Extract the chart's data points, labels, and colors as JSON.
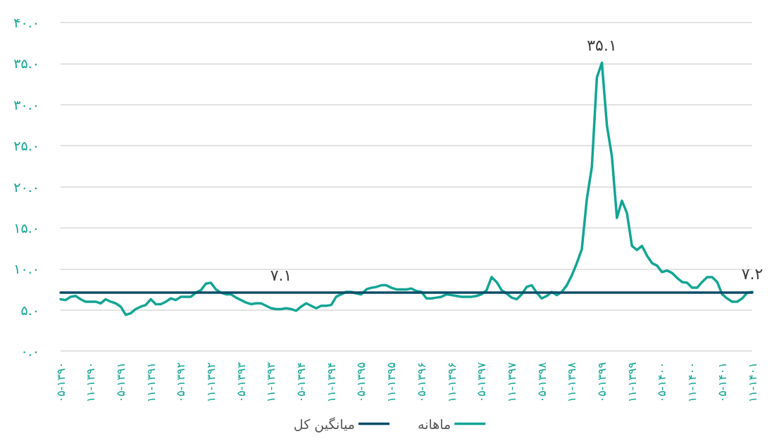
{
  "chart_data": {
    "type": "line",
    "categories": [
      "۰۵-۱۳۹۰",
      null,
      null,
      null,
      null,
      null,
      "۱۱-۱۳۹۰",
      null,
      null,
      null,
      null,
      null,
      "۰۵-۱۳۹۱",
      null,
      null,
      null,
      null,
      null,
      "۱۱-۱۳۹۱",
      null,
      null,
      null,
      null,
      null,
      "۰۵-۱۳۹۲",
      null,
      null,
      null,
      null,
      null,
      "۱۱-۱۳۹۲",
      null,
      null,
      null,
      null,
      null,
      "۰۵-۱۳۹۳",
      null,
      null,
      null,
      null,
      null,
      "۱۱-۱۳۹۳",
      null,
      null,
      null,
      null,
      null,
      "۰۵-۱۳۹۴",
      null,
      null,
      null,
      null,
      null,
      "۱۱-۱۳۹۴",
      null,
      null,
      null,
      null,
      null,
      "۰۵-۱۳۹۵",
      null,
      null,
      null,
      null,
      null,
      "۱۱-۱۳۹۵",
      null,
      null,
      null,
      null,
      null,
      "۰۵-۱۳۹۶",
      null,
      null,
      null,
      null,
      null,
      "۱۱-۱۳۹۶",
      null,
      null,
      null,
      null,
      null,
      "۰۵-۱۳۹۷",
      null,
      null,
      null,
      null,
      null,
      "۱۱-۱۳۹۷",
      null,
      null,
      null,
      null,
      null,
      "۰۵-۱۳۹۸",
      null,
      null,
      null,
      null,
      null,
      "۱۱-۱۳۹۸",
      null,
      null,
      null,
      null,
      null,
      "۰۵-۱۳۹۹",
      null,
      null,
      null,
      null,
      null,
      "۱۱-۱۳۹۹",
      null,
      null,
      null,
      null,
      null,
      "۰۵-۱۴۰۰",
      null,
      null,
      null,
      null,
      null,
      "۱۱-۱۴۰۰",
      null,
      null,
      null,
      null,
      null,
      "۰۵-۱۴۰۱",
      null,
      null,
      null,
      null,
      null,
      "۱۱-۱۴۰۱"
    ],
    "series": [
      {
        "name": "ماهانه",
        "color": "#12a594",
        "values": [
          6.3,
          6.2,
          6.6,
          6.7,
          6.3,
          6.0,
          6.0,
          6.0,
          5.8,
          6.3,
          6.0,
          5.8,
          5.4,
          4.4,
          4.6,
          5.1,
          5.4,
          5.6,
          6.3,
          5.7,
          5.7,
          6.0,
          6.4,
          6.2,
          6.6,
          6.6,
          6.6,
          7.1,
          7.4,
          8.2,
          8.3,
          7.5,
          7.1,
          6.9,
          6.9,
          6.5,
          6.2,
          5.9,
          5.7,
          5.8,
          5.8,
          5.5,
          5.2,
          5.1,
          5.1,
          5.2,
          5.1,
          4.9,
          5.4,
          5.8,
          5.5,
          5.2,
          5.5,
          5.5,
          5.6,
          6.6,
          6.9,
          7.2,
          7.2,
          7.0,
          6.9,
          7.5,
          7.7,
          7.8,
          8.0,
          8.0,
          7.7,
          7.5,
          7.5,
          7.5,
          7.6,
          7.3,
          7.2,
          6.4,
          6.4,
          6.5,
          6.6,
          6.9,
          6.8,
          6.7,
          6.6,
          6.6,
          6.6,
          6.7,
          6.9,
          7.4,
          9.0,
          8.4,
          7.4,
          7.0,
          6.5,
          6.3,
          6.9,
          7.8,
          8.0,
          7.1,
          6.4,
          6.7,
          7.2,
          6.8,
          7.2,
          8.0,
          9.2,
          10.7,
          12.4,
          18.5,
          22.4,
          33.3,
          35.1,
          27.5,
          23.7,
          16.2,
          18.3,
          16.8,
          12.8,
          12.3,
          12.8,
          11.6,
          10.7,
          10.4,
          9.6,
          9.8,
          9.5,
          8.9,
          8.4,
          8.3,
          7.7,
          7.7,
          8.4,
          9.0,
          9.0,
          8.4,
          6.9,
          6.4,
          6.0,
          6.0,
          6.4,
          7.1,
          7.2
        ],
        "value_labels": [
          null,
          null,
          null,
          null,
          null,
          null,
          null,
          null,
          null,
          null,
          null,
          null,
          null,
          null,
          null,
          null,
          null,
          null,
          null,
          null,
          null,
          null,
          null,
          null,
          null,
          null,
          null,
          null,
          null,
          null,
          null,
          null,
          null,
          null,
          null,
          null,
          null,
          null,
          null,
          null,
          null,
          null,
          null,
          null,
          null,
          null,
          null,
          null,
          null,
          null,
          null,
          null,
          null,
          null,
          null,
          null,
          null,
          null,
          null,
          null,
          null,
          null,
          null,
          null,
          null,
          null,
          null,
          null,
          null,
          null,
          null,
          null,
          null,
          null,
          null,
          null,
          null,
          null,
          null,
          null,
          null,
          null,
          null,
          null,
          null,
          null,
          null,
          null,
          null,
          null,
          null,
          null,
          null,
          null,
          null,
          null,
          null,
          null,
          null,
          null,
          null,
          null,
          null,
          null,
          null,
          null,
          null,
          null,
          "۳۵.۱",
          null,
          null,
          null,
          null,
          null,
          null,
          null,
          null,
          null,
          null,
          null,
          null,
          null,
          null,
          null,
          null,
          null,
          null,
          null,
          null,
          null,
          null,
          null,
          null,
          null,
          null,
          null,
          null,
          null,
          "۷.۲"
        ]
      },
      {
        "name": "میانگین کل",
        "color": "#0b4d68",
        "values": [
          7.1,
          7.1,
          7.1,
          7.1,
          7.1,
          7.1,
          7.1,
          7.1,
          7.1,
          7.1,
          7.1,
          7.1,
          7.1,
          7.1,
          7.1,
          7.1,
          7.1,
          7.1,
          7.1,
          7.1,
          7.1,
          7.1,
          7.1,
          7.1,
          7.1,
          7.1,
          7.1,
          7.1,
          7.1,
          7.1,
          7.1,
          7.1,
          7.1,
          7.1,
          7.1,
          7.1,
          7.1,
          7.1,
          7.1,
          7.1,
          7.1,
          7.1,
          7.1,
          7.1,
          7.1,
          7.1,
          7.1,
          7.1,
          7.1,
          7.1,
          7.1,
          7.1,
          7.1,
          7.1,
          7.1,
          7.1,
          7.1,
          7.1,
          7.1,
          7.1,
          7.1,
          7.1,
          7.1,
          7.1,
          7.1,
          7.1,
          7.1,
          7.1,
          7.1,
          7.1,
          7.1,
          7.1,
          7.1,
          7.1,
          7.1,
          7.1,
          7.1,
          7.1,
          7.1,
          7.1,
          7.1,
          7.1,
          7.1,
          7.1,
          7.1,
          7.1,
          7.1,
          7.1,
          7.1,
          7.1,
          7.1,
          7.1,
          7.1,
          7.1,
          7.1,
          7.1,
          7.1,
          7.1,
          7.1,
          7.1,
          7.1,
          7.1,
          7.1,
          7.1,
          7.1,
          7.1,
          7.1,
          7.1,
          7.1,
          7.1,
          7.1,
          7.1,
          7.1,
          7.1,
          7.1,
          7.1,
          7.1,
          7.1,
          7.1,
          7.1,
          7.1,
          7.1,
          7.1,
          7.1,
          7.1,
          7.1,
          7.1,
          7.1,
          7.1,
          7.1,
          7.1,
          7.1,
          7.1,
          7.1,
          7.1,
          7.1,
          7.1,
          7.1,
          7.1
        ],
        "value_labels": [
          null,
          null,
          null,
          null,
          null,
          null,
          null,
          null,
          null,
          null,
          null,
          null,
          null,
          null,
          null,
          null,
          null,
          null,
          null,
          null,
          null,
          null,
          null,
          null,
          null,
          null,
          null,
          null,
          null,
          null,
          null,
          null,
          null,
          null,
          null,
          null,
          null,
          null,
          null,
          null,
          null,
          null,
          null,
          null,
          "۷.۱",
          null,
          null,
          null,
          null,
          null,
          null,
          null,
          null,
          null,
          null,
          null,
          null,
          null,
          null,
          null,
          null,
          null,
          null,
          null,
          null,
          null,
          null,
          null,
          null,
          null,
          null,
          null,
          null,
          null,
          null,
          null,
          null,
          null,
          null,
          null,
          null,
          null,
          null,
          null,
          null,
          null,
          null,
          null,
          null,
          null,
          null,
          null,
          null,
          null,
          null,
          null,
          null,
          null,
          null,
          null,
          null,
          null,
          null,
          null,
          null,
          null,
          null,
          null,
          null,
          null,
          null,
          null,
          null,
          null,
          null,
          null,
          null,
          null,
          null,
          null,
          null,
          null,
          null,
          null,
          null,
          null,
          null,
          null,
          null,
          null,
          null,
          null,
          null,
          null,
          null,
          null,
          null,
          null,
          null
        ]
      }
    ],
    "ylim": [
      0,
      40
    ],
    "yticks": [
      {
        "value": 0,
        "label": "۰.۰"
      },
      {
        "value": 5,
        "label": "۵.۰"
      },
      {
        "value": 10,
        "label": "۱۰.۰"
      },
      {
        "value": 15,
        "label": "۱۵.۰"
      },
      {
        "value": 20,
        "label": "۲۰.۰"
      },
      {
        "value": 25,
        "label": "۲۵.۰"
      },
      {
        "value": 30,
        "label": "۳۰.۰"
      },
      {
        "value": 35,
        "label": "۳۵.۰"
      },
      {
        "value": 40,
        "label": "۴۰.۰"
      }
    ],
    "grid": "y",
    "legend": "bottom",
    "marker": "none",
    "line_style": "solid"
  }
}
